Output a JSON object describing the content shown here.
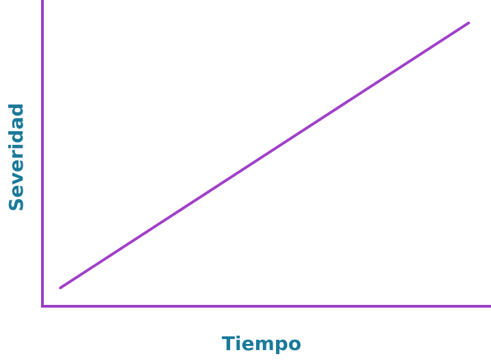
{
  "chart_data": {
    "type": "line",
    "title": "",
    "xlabel": "Tiempo",
    "ylabel": "Severidad",
    "xlim": [
      0,
      1
    ],
    "ylim": [
      0,
      1
    ],
    "grid": false,
    "series": [
      {
        "x": [
          0.04,
          0.95
        ],
        "y": [
          0.06,
          0.925
        ]
      }
    ],
    "colors": {
      "axis": "#9b3fc4",
      "line": "#a040c8",
      "label": "#1a7a9a"
    }
  }
}
